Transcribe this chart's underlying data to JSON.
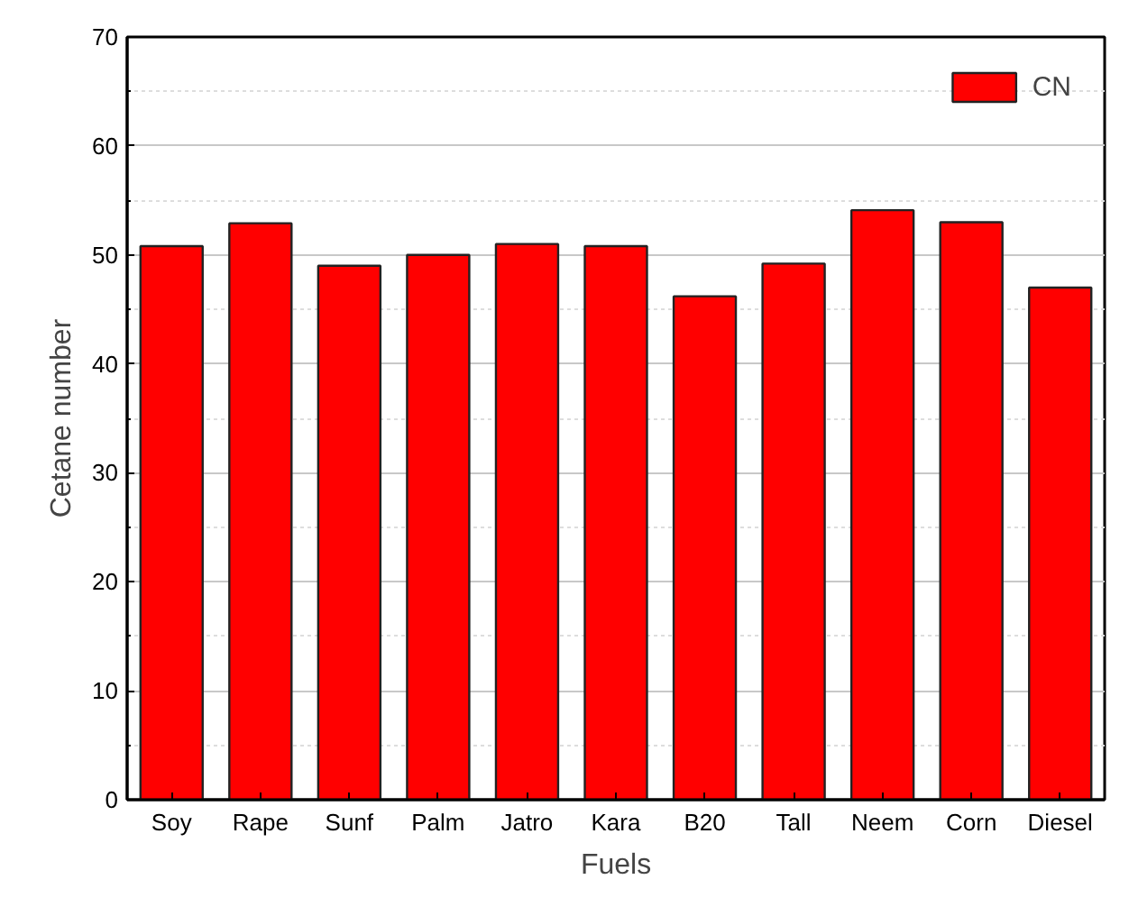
{
  "chart_data": {
    "type": "bar",
    "xlabel": "Fuels",
    "ylabel": "Cetane number",
    "categories": [
      "Soy",
      "Rape",
      "Sunf",
      "Palm",
      "Jatro",
      "Kara",
      "B20",
      "Tall",
      "Neem",
      "Corn",
      "Diesel"
    ],
    "series": [
      {
        "name": "CN",
        "color": "#ff0000",
        "values": [
          50.8,
          52.9,
          49.0,
          50.0,
          51.0,
          50.8,
          46.2,
          49.2,
          54.1,
          53.0,
          47.0
        ]
      }
    ],
    "ylim": [
      0,
      70
    ],
    "yticks": [
      0,
      10,
      20,
      30,
      40,
      50,
      60,
      70
    ],
    "grid": "y",
    "legend": "top right"
  }
}
